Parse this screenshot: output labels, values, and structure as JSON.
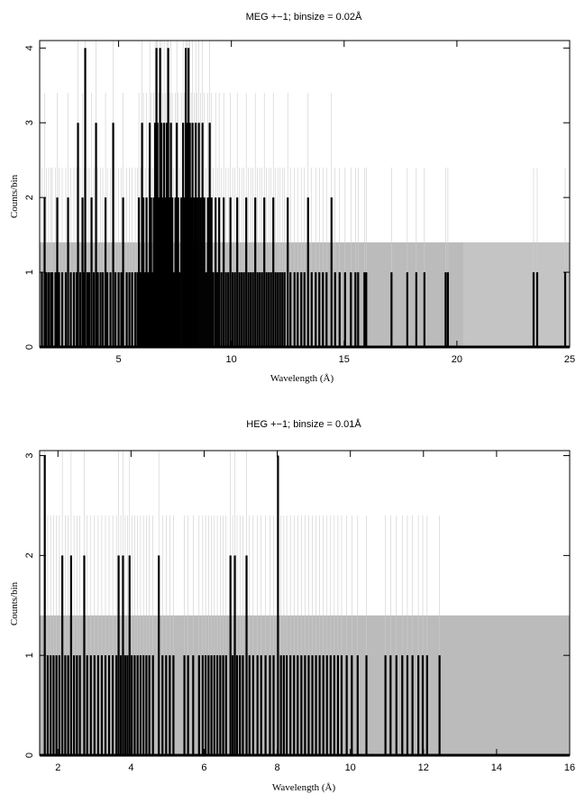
{
  "chart_data": [
    {
      "type": "histogram",
      "title": "MEG +−1; binsize = 0.02Å",
      "xlabel": "Wavelength (Å)",
      "ylabel": "Counts/bin",
      "xlim": [
        1.5,
        25
      ],
      "ylim": [
        0,
        4.1
      ],
      "xticks": [
        5,
        10,
        15,
        20,
        25
      ],
      "yticks": [
        0,
        1,
        2,
        3,
        4
      ],
      "series": [
        {
          "role": "counts",
          "color": "#000000",
          "points": [
            [
              1.6,
              1
            ],
            [
              1.72,
              2
            ],
            [
              1.8,
              1
            ],
            [
              1.9,
              1
            ],
            [
              2.0,
              1
            ],
            [
              2.06,
              1
            ],
            [
              2.2,
              1
            ],
            [
              2.28,
              2
            ],
            [
              2.36,
              1
            ],
            [
              2.5,
              1
            ],
            [
              2.66,
              1
            ],
            [
              2.76,
              2
            ],
            [
              2.88,
              1
            ],
            [
              3.02,
              1
            ],
            [
              3.14,
              1
            ],
            [
              3.2,
              3
            ],
            [
              3.3,
              1
            ],
            [
              3.4,
              2
            ],
            [
              3.48,
              1
            ],
            [
              3.52,
              4
            ],
            [
              3.62,
              1
            ],
            [
              3.7,
              1
            ],
            [
              3.8,
              2
            ],
            [
              3.9,
              1
            ],
            [
              4.0,
              3
            ],
            [
              4.08,
              1
            ],
            [
              4.2,
              1
            ],
            [
              4.3,
              1
            ],
            [
              4.42,
              2
            ],
            [
              4.5,
              1
            ],
            [
              4.64,
              1
            ],
            [
              4.76,
              3
            ],
            [
              4.86,
              1
            ],
            [
              5.0,
              1
            ],
            [
              5.12,
              1
            ],
            [
              5.2,
              2
            ],
            [
              5.36,
              1
            ],
            [
              5.48,
              1
            ],
            [
              5.6,
              1
            ],
            [
              5.74,
              1
            ],
            [
              5.84,
              1
            ],
            [
              5.9,
              2
            ],
            [
              5.98,
              1
            ],
            [
              6.04,
              3
            ],
            [
              6.1,
              2
            ],
            [
              6.18,
              1
            ],
            [
              6.24,
              2
            ],
            [
              6.3,
              1
            ],
            [
              6.38,
              3
            ],
            [
              6.44,
              2
            ],
            [
              6.5,
              1
            ],
            [
              6.56,
              2
            ],
            [
              6.62,
              3
            ],
            [
              6.68,
              4
            ],
            [
              6.72,
              3
            ],
            [
              6.78,
              2
            ],
            [
              6.84,
              4
            ],
            [
              6.9,
              3
            ],
            [
              6.96,
              2
            ],
            [
              7.02,
              3
            ],
            [
              7.08,
              2
            ],
            [
              7.14,
              3
            ],
            [
              7.2,
              4
            ],
            [
              7.26,
              2
            ],
            [
              7.32,
              3
            ],
            [
              7.38,
              2
            ],
            [
              7.44,
              1
            ],
            [
              7.52,
              2
            ],
            [
              7.58,
              3
            ],
            [
              7.64,
              2
            ],
            [
              7.7,
              1
            ],
            [
              7.78,
              2
            ],
            [
              7.86,
              3
            ],
            [
              7.92,
              2
            ],
            [
              7.98,
              4
            ],
            [
              8.04,
              3
            ],
            [
              8.1,
              4
            ],
            [
              8.16,
              3
            ],
            [
              8.22,
              2
            ],
            [
              8.28,
              3
            ],
            [
              8.36,
              2
            ],
            [
              8.42,
              3
            ],
            [
              8.48,
              2
            ],
            [
              8.56,
              3
            ],
            [
              8.64,
              2
            ],
            [
              8.72,
              3
            ],
            [
              8.8,
              2
            ],
            [
              8.88,
              1
            ],
            [
              8.96,
              2
            ],
            [
              9.04,
              3
            ],
            [
              9.12,
              2
            ],
            [
              9.2,
              1
            ],
            [
              9.3,
              2
            ],
            [
              9.38,
              1
            ],
            [
              9.46,
              2
            ],
            [
              9.56,
              1
            ],
            [
              9.66,
              2
            ],
            [
              9.76,
              1
            ],
            [
              9.86,
              1
            ],
            [
              9.96,
              2
            ],
            [
              10.06,
              1
            ],
            [
              10.16,
              1
            ],
            [
              10.26,
              2
            ],
            [
              10.36,
              1
            ],
            [
              10.46,
              1
            ],
            [
              10.56,
              1
            ],
            [
              10.66,
              2
            ],
            [
              10.76,
              1
            ],
            [
              10.86,
              1
            ],
            [
              10.96,
              1
            ],
            [
              11.06,
              2
            ],
            [
              11.16,
              1
            ],
            [
              11.26,
              1
            ],
            [
              11.36,
              1
            ],
            [
              11.46,
              2
            ],
            [
              11.56,
              1
            ],
            [
              11.66,
              1
            ],
            [
              11.76,
              1
            ],
            [
              11.86,
              2
            ],
            [
              11.96,
              1
            ],
            [
              12.06,
              1
            ],
            [
              12.16,
              1
            ],
            [
              12.26,
              1
            ],
            [
              12.36,
              1
            ],
            [
              12.5,
              2
            ],
            [
              12.62,
              1
            ],
            [
              12.8,
              1
            ],
            [
              12.94,
              1
            ],
            [
              13.1,
              1
            ],
            [
              13.24,
              1
            ],
            [
              13.4,
              2
            ],
            [
              13.56,
              1
            ],
            [
              13.74,
              1
            ],
            [
              13.9,
              1
            ],
            [
              14.06,
              1
            ],
            [
              14.22,
              1
            ],
            [
              14.44,
              2
            ],
            [
              14.6,
              1
            ],
            [
              14.8,
              1
            ],
            [
              15.04,
              1
            ],
            [
              15.3,
              1
            ],
            [
              15.5,
              1
            ],
            [
              15.62,
              1
            ],
            [
              15.9,
              1
            ],
            [
              15.98,
              1
            ],
            [
              17.1,
              1
            ],
            [
              17.8,
              1
            ],
            [
              18.2,
              1
            ],
            [
              18.56,
              1
            ],
            [
              19.5,
              1
            ],
            [
              19.6,
              1
            ],
            [
              23.4,
              1
            ],
            [
              23.56,
              1
            ],
            [
              24.8,
              1
            ]
          ]
        },
        {
          "role": "background",
          "color": "#bbbbbb",
          "level": 1.4,
          "band": [
            1.5,
            20.3
          ],
          "x": [
            1.5,
            25
          ]
        }
      ]
    },
    {
      "type": "histogram",
      "title": "HEG +−1; binsize = 0.01Å",
      "xlabel": "Wavelength (Å)",
      "ylabel": "Counts/bin",
      "xlim": [
        1.5,
        16
      ],
      "ylim": [
        0,
        3.05
      ],
      "xticks": [
        2,
        4,
        6,
        8,
        10,
        12,
        14,
        16
      ],
      "yticks": [
        0,
        1,
        2,
        3
      ],
      "series": [
        {
          "role": "counts",
          "color": "#000000",
          "points": [
            [
              1.64,
              3
            ],
            [
              1.72,
              1
            ],
            [
              1.8,
              1
            ],
            [
              1.88,
              1
            ],
            [
              1.96,
              1
            ],
            [
              2.04,
              1
            ],
            [
              2.12,
              2
            ],
            [
              2.2,
              1
            ],
            [
              2.28,
              1
            ],
            [
              2.36,
              2
            ],
            [
              2.44,
              1
            ],
            [
              2.52,
              1
            ],
            [
              2.6,
              1
            ],
            [
              2.72,
              2
            ],
            [
              2.8,
              1
            ],
            [
              2.9,
              1
            ],
            [
              3.0,
              1
            ],
            [
              3.1,
              1
            ],
            [
              3.2,
              1
            ],
            [
              3.3,
              1
            ],
            [
              3.4,
              1
            ],
            [
              3.5,
              1
            ],
            [
              3.6,
              1
            ],
            [
              3.66,
              2
            ],
            [
              3.72,
              1
            ],
            [
              3.78,
              2
            ],
            [
              3.84,
              1
            ],
            [
              3.9,
              1
            ],
            [
              3.96,
              2
            ],
            [
              4.02,
              1
            ],
            [
              4.1,
              1
            ],
            [
              4.18,
              1
            ],
            [
              4.26,
              1
            ],
            [
              4.34,
              1
            ],
            [
              4.42,
              1
            ],
            [
              4.5,
              1
            ],
            [
              4.6,
              1
            ],
            [
              4.76,
              2
            ],
            [
              4.86,
              1
            ],
            [
              4.96,
              1
            ],
            [
              5.06,
              1
            ],
            [
              5.16,
              1
            ],
            [
              5.46,
              1
            ],
            [
              5.56,
              1
            ],
            [
              5.7,
              1
            ],
            [
              5.86,
              1
            ],
            [
              5.96,
              1
            ],
            [
              6.04,
              1
            ],
            [
              6.12,
              1
            ],
            [
              6.2,
              1
            ],
            [
              6.28,
              1
            ],
            [
              6.36,
              1
            ],
            [
              6.44,
              1
            ],
            [
              6.52,
              1
            ],
            [
              6.6,
              1
            ],
            [
              6.72,
              2
            ],
            [
              6.78,
              1
            ],
            [
              6.84,
              2
            ],
            [
              6.9,
              1
            ],
            [
              6.98,
              1
            ],
            [
              7.06,
              1
            ],
            [
              7.16,
              2
            ],
            [
              7.24,
              1
            ],
            [
              7.34,
              1
            ],
            [
              7.46,
              1
            ],
            [
              7.56,
              1
            ],
            [
              7.68,
              1
            ],
            [
              7.8,
              1
            ],
            [
              7.9,
              1
            ],
            [
              8.02,
              3
            ],
            [
              8.1,
              1
            ],
            [
              8.18,
              1
            ],
            [
              8.26,
              1
            ],
            [
              8.36,
              1
            ],
            [
              8.46,
              1
            ],
            [
              8.56,
              1
            ],
            [
              8.66,
              1
            ],
            [
              8.76,
              1
            ],
            [
              8.86,
              1
            ],
            [
              8.96,
              1
            ],
            [
              9.06,
              1
            ],
            [
              9.16,
              1
            ],
            [
              9.26,
              1
            ],
            [
              9.36,
              1
            ],
            [
              9.46,
              1
            ],
            [
              9.56,
              1
            ],
            [
              9.66,
              1
            ],
            [
              9.76,
              1
            ],
            [
              9.9,
              1
            ],
            [
              10.04,
              1
            ],
            [
              10.2,
              1
            ],
            [
              10.44,
              1
            ],
            [
              10.96,
              1
            ],
            [
              11.1,
              1
            ],
            [
              11.26,
              1
            ],
            [
              11.42,
              1
            ],
            [
              11.56,
              1
            ],
            [
              11.7,
              1
            ],
            [
              11.86,
              1
            ],
            [
              11.98,
              1
            ],
            [
              12.1,
              1
            ],
            [
              12.44,
              1
            ]
          ]
        },
        {
          "role": "background",
          "color": "#bbbbbb",
          "level": 1.4,
          "band": [
            1.5,
            16
          ],
          "x": [
            1.5,
            16
          ]
        }
      ]
    }
  ]
}
